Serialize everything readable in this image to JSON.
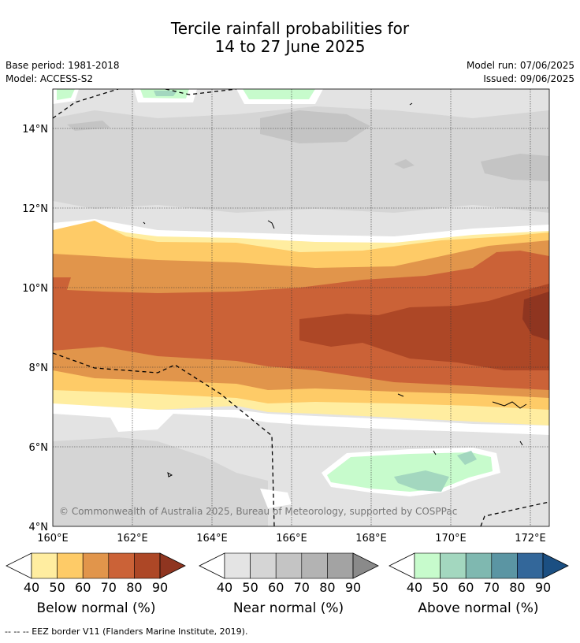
{
  "title": {
    "line1": "Tercile rainfall probabilities for",
    "line2": "14 to 27 June 2025"
  },
  "meta": {
    "base_period": "Base period: 1981-2018",
    "model": "Model: ACCESS-S2",
    "model_run": "Model run: 07/06/2025",
    "issued": "Issued: 09/06/2025"
  },
  "map": {
    "copyright": "© Commonwealth of Australia 2025, Bureau of Meteorology, supported by COSPPac",
    "lat_ticks": [
      "14°N",
      "12°N",
      "10°N",
      "8°N",
      "6°N",
      "4°N"
    ],
    "lon_ticks": [
      "160°E",
      "162°E",
      "164°E",
      "166°E",
      "168°E",
      "170°E",
      "172°E"
    ]
  },
  "colorbars": {
    "below": {
      "title": "Below normal (%)",
      "ticks": [
        "40",
        "50",
        "60",
        "70",
        "80",
        "90"
      ],
      "colors": [
        "#ffeda0",
        "#fecb67",
        "#e1954b",
        "#cb6237",
        "#ad4726",
        "#8f3520"
      ]
    },
    "near": {
      "title": "Near normal (%)",
      "ticks": [
        "40",
        "50",
        "60",
        "70",
        "80",
        "90"
      ],
      "colors": [
        "#e4e4e4",
        "#d5d5d5",
        "#c4c4c4",
        "#b3b3b3",
        "#a3a3a3",
        "#8a8a8a"
      ]
    },
    "above": {
      "title": "Above normal (%)",
      "ticks": [
        "40",
        "50",
        "60",
        "70",
        "80",
        "90"
      ],
      "colors": [
        "#c7fbcc",
        "#a3d7bf",
        "#7fb8b0",
        "#5b95a3",
        "#33679a",
        "#1b4f82"
      ]
    }
  },
  "footer": "--  --  -- EEZ border V11 (Flanders Marine Institute, 2019)."
}
